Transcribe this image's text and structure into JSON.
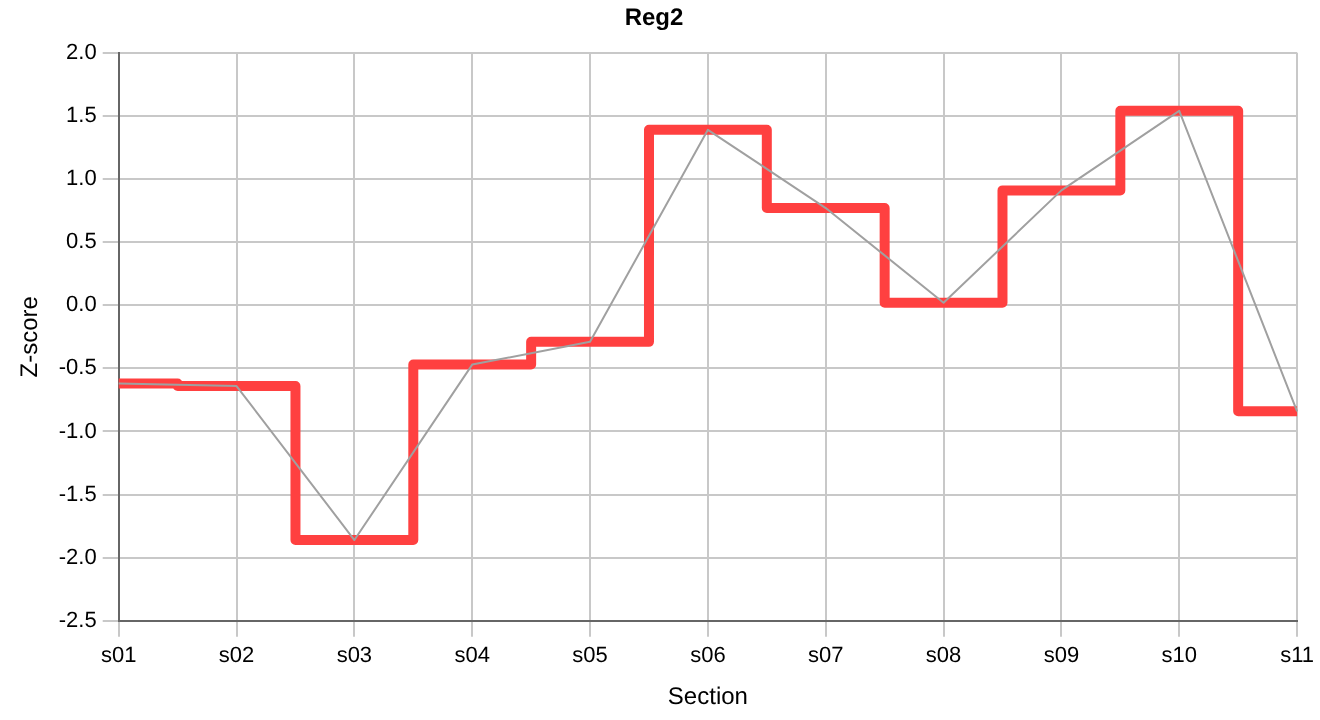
{
  "chart_data": {
    "type": "step",
    "title": "Reg2",
    "xlabel": "Section",
    "ylabel": "Z-score",
    "categories": [
      "s01",
      "s02",
      "s03",
      "s04",
      "s05",
      "s06",
      "s07",
      "s08",
      "s09",
      "s10",
      "s11"
    ],
    "series": [
      {
        "type": "line",
        "color": "#a0a0a0",
        "values": [
          -0.62,
          -0.64,
          -1.86,
          -0.47,
          -0.29,
          1.39,
          0.77,
          0.02,
          0.91,
          1.54,
          -0.84
        ]
      },
      {
        "color": "#ff4040",
        "values": [
          -0.62,
          -0.64,
          -1.86,
          -0.47,
          -0.29,
          1.39,
          0.77,
          0.02,
          0.91,
          1.54,
          -0.84
        ]
      }
    ],
    "ylim": [
      -2.5,
      2.0
    ],
    "yticks": [
      {
        "value": -2.5,
        "label": "-2.5"
      },
      {
        "value": -2.0,
        "label": "-2.0"
      },
      {
        "value": -1.5,
        "label": "-1.5"
      },
      {
        "value": -1.0,
        "label": "-1.0"
      },
      {
        "value": -0.5,
        "label": "-0.5"
      },
      {
        "value": 0,
        "label": "0.0"
      },
      {
        "value": 0.5,
        "label": "0.5"
      },
      {
        "value": 1.0,
        "label": "1.0"
      },
      {
        "value": 1.5,
        "label": "1.5"
      },
      {
        "value": 2.0,
        "label": "2.0"
      }
    ],
    "grid": true,
    "legend": false,
    "marker": "none"
  }
}
